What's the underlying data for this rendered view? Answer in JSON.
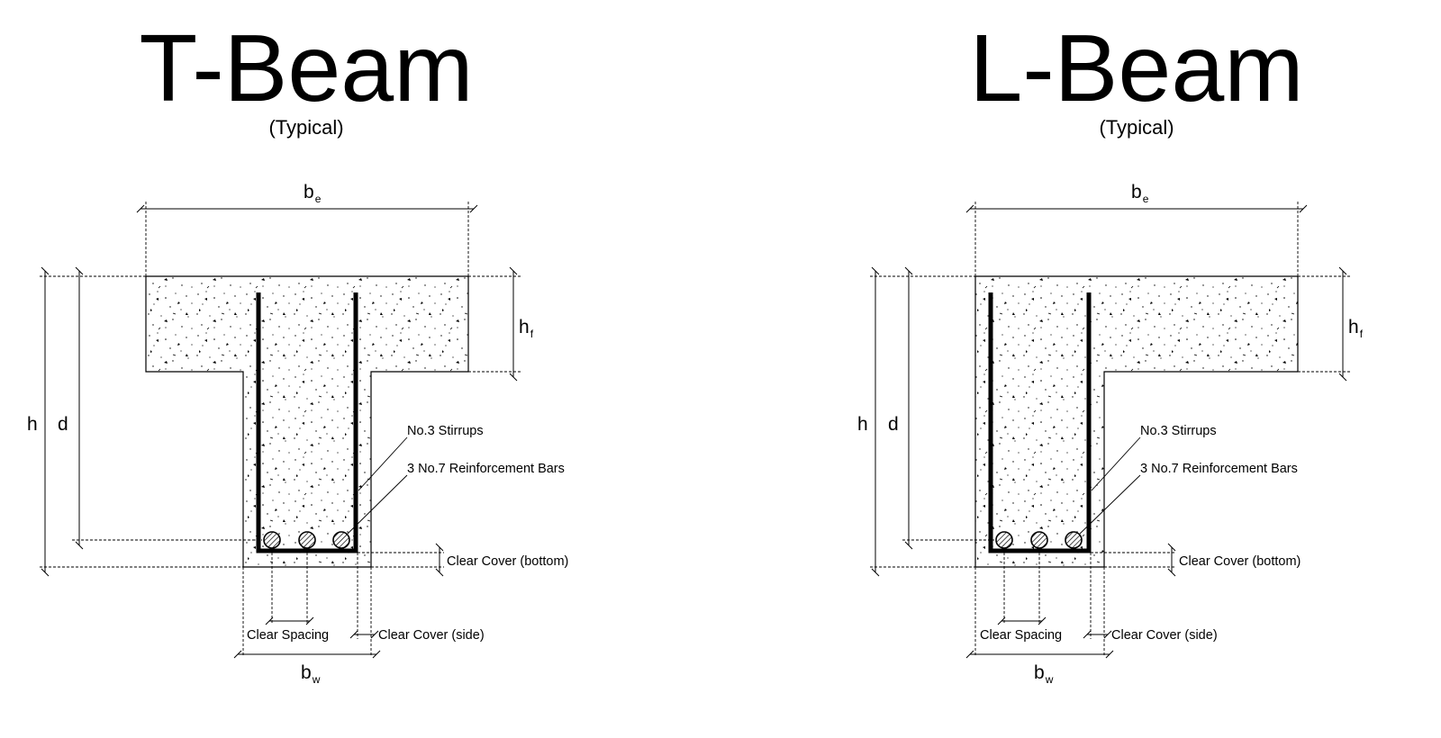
{
  "colors": {
    "line": "#000000",
    "background": "#ffffff"
  },
  "diagrams": [
    {
      "title": "T-Beam",
      "subtitle": "(Typical)",
      "labels": {
        "be": "b",
        "be_sub": "e",
        "hf": "h",
        "hf_sub": "f",
        "h": "h",
        "d": "d",
        "bw": "b",
        "bw_sub": "w",
        "stirrups": "No.3 Stirrups",
        "bars": "3 No.7 Reinforcement Bars",
        "cover_bottom": "Clear Cover (bottom)",
        "clear_spacing": "Clear Spacing",
        "cover_side": "Clear Cover (side)"
      }
    },
    {
      "title": "L-Beam",
      "subtitle": "(Typical)",
      "labels": {
        "be": "b",
        "be_sub": "e",
        "hf": "h",
        "hf_sub": "f",
        "h": "h",
        "d": "d",
        "bw": "b",
        "bw_sub": "w",
        "stirrups": "No.3 Stirrups",
        "bars": "3 No.7 Reinforcement Bars",
        "cover_bottom": "Clear Cover (bottom)",
        "clear_spacing": "Clear Spacing",
        "cover_side": "Clear Cover (side)"
      }
    }
  ]
}
